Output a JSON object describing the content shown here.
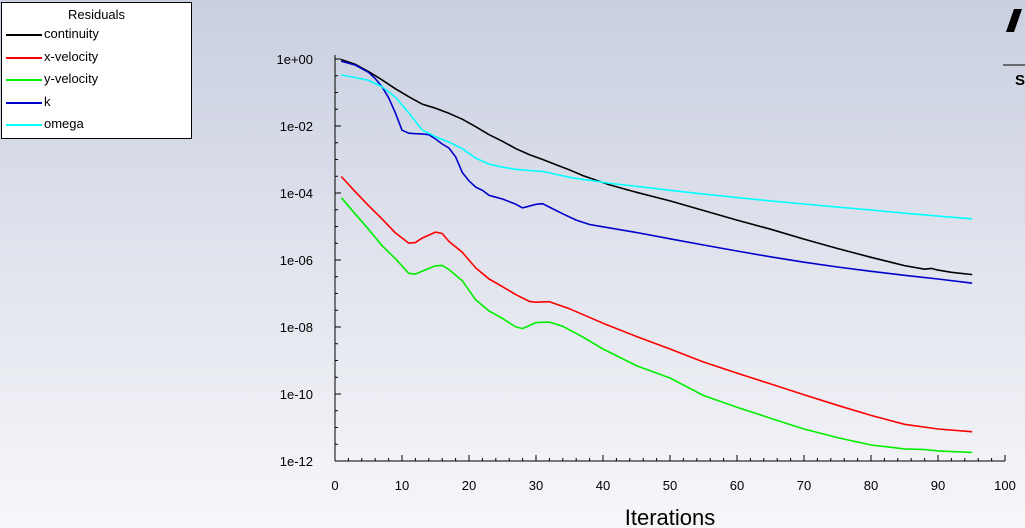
{
  "chart_data": {
    "type": "line",
    "legend_title": "Residuals",
    "legend_position": "top-left",
    "xlabel": "Iterations",
    "ylabel": "",
    "xlim": [
      0,
      100
    ],
    "ylim": [
      1e-12,
      1
    ],
    "y_scale": "log",
    "x_ticks": [
      0,
      10,
      20,
      30,
      40,
      50,
      60,
      70,
      80,
      90,
      100
    ],
    "x_tick_labels": [
      "0",
      "10",
      "20",
      "30",
      "40",
      "50",
      "60",
      "70",
      "80",
      "90",
      "100"
    ],
    "y_ticks": [
      1e-12,
      1e-10,
      1e-08,
      1e-06,
      0.0001,
      0.01,
      1
    ],
    "y_tick_labels": [
      "1e-12",
      "1e-10",
      "1e-08",
      "1e-06",
      "1e-04",
      "1e-02",
      "1e+00"
    ],
    "grid": false,
    "series": [
      {
        "name": "continuity",
        "color": "#000000",
        "x": [
          1,
          3,
          5,
          7,
          9,
          11,
          13,
          15,
          17,
          19,
          21,
          23,
          25,
          27,
          29,
          31,
          33,
          35,
          37,
          39,
          41,
          45,
          50,
          55,
          60,
          65,
          70,
          75,
          80,
          85,
          88,
          89,
          90,
          92,
          95
        ],
        "y": [
          0.95,
          0.7,
          0.42,
          0.24,
          0.13,
          0.075,
          0.045,
          0.034,
          0.024,
          0.016,
          0.0095,
          0.0055,
          0.0035,
          0.0021,
          0.0014,
          0.001,
          0.0007,
          0.00049,
          0.00033,
          0.00024,
          0.000175,
          0.000105,
          5.8e-05,
          3e-05,
          1.55e-05,
          8.3e-06,
          4.2e-06,
          2.2e-06,
          1.2e-06,
          6.8e-07,
          5.3e-07,
          5.6e-07,
          5e-07,
          4.3e-07,
          3.7e-07
        ]
      },
      {
        "name": "x-velocity",
        "color": "#ff0000",
        "x": [
          1,
          3,
          5,
          7,
          9,
          11,
          12,
          13,
          15,
          16,
          17,
          19,
          21,
          23,
          25,
          27,
          29,
          30,
          32,
          35,
          40,
          45,
          50,
          55,
          60,
          65,
          70,
          75,
          80,
          85,
          90,
          95
        ],
        "y": [
          0.0003,
          0.00011,
          4.2e-05,
          1.7e-05,
          6.5e-06,
          3.2e-06,
          3.3e-06,
          4.5e-06,
          6.8e-06,
          6.2e-06,
          3.6e-06,
          1.7e-06,
          5.8e-07,
          2.7e-07,
          1.6e-07,
          9.2e-08,
          5.8e-08,
          5.5e-08,
          5.7e-08,
          3.5e-08,
          1.3e-08,
          5.2e-09,
          2.2e-09,
          9e-10,
          4.2e-10,
          2e-10,
          9.5e-11,
          4.6e-11,
          2.3e-11,
          1.25e-11,
          9e-12,
          7.5e-12
        ]
      },
      {
        "name": "y-velocity",
        "color": "#00ee00",
        "x": [
          1,
          3,
          5,
          7,
          9,
          11,
          12,
          13,
          15,
          16,
          17,
          19,
          21,
          23,
          25,
          27,
          28,
          30,
          32,
          34,
          37,
          40,
          45,
          50,
          55,
          60,
          65,
          70,
          75,
          80,
          85,
          88,
          90,
          95
        ],
        "y": [
          7e-05,
          2.4e-05,
          8.3e-06,
          2.7e-06,
          1.1e-06,
          4e-07,
          3.8e-07,
          4.6e-07,
          6.7e-07,
          6.9e-07,
          5.2e-07,
          2.4e-07,
          6.5e-08,
          3e-08,
          1.8e-08,
          1e-08,
          9e-09,
          1.35e-08,
          1.4e-08,
          1.05e-08,
          5e-09,
          2.2e-09,
          7e-10,
          3e-10,
          9e-11,
          4e-11,
          1.9e-11,
          9e-12,
          5e-12,
          3e-12,
          2.3e-12,
          2.2e-12,
          2e-12,
          1.8e-12
        ]
      },
      {
        "name": "k",
        "color": "#0000cc",
        "x": [
          1,
          3,
          5,
          6,
          7,
          8,
          9,
          10,
          11,
          12,
          13,
          14,
          15,
          16,
          17,
          18,
          19,
          20,
          21,
          22,
          23,
          24,
          25,
          27,
          28,
          30,
          31,
          32,
          34,
          36,
          38,
          40,
          45,
          50,
          55,
          60,
          65,
          70,
          75,
          80,
          85,
          90,
          95
        ],
        "y": [
          0.85,
          0.66,
          0.4,
          0.26,
          0.15,
          0.07,
          0.025,
          0.0075,
          0.0061,
          0.0059,
          0.0058,
          0.0055,
          0.0041,
          0.0029,
          0.0022,
          0.0012,
          0.00041,
          0.00023,
          0.00015,
          0.00012,
          8.5e-05,
          7.5e-05,
          6.6e-05,
          4.6e-05,
          3.6e-05,
          4.6e-05,
          4.8e-05,
          3.8e-05,
          2.4e-05,
          1.55e-05,
          1.15e-05,
          9.8e-06,
          6.6e-06,
          4.3e-06,
          2.8e-06,
          1.85e-06,
          1.25e-06,
          8.6e-07,
          6.2e-07,
          4.6e-07,
          3.5e-07,
          2.7e-07,
          2.05e-07
        ]
      },
      {
        "name": "omega",
        "color": "#00ffff",
        "x": [
          1,
          3,
          5,
          7,
          9,
          11,
          13,
          15,
          17,
          19,
          21,
          23,
          25,
          27,
          29,
          31,
          33,
          35,
          37,
          39,
          41,
          45,
          50,
          55,
          60,
          65,
          70,
          75,
          80,
          85,
          90,
          95
        ],
        "y": [
          0.33,
          0.28,
          0.23,
          0.15,
          0.073,
          0.025,
          0.0077,
          0.0048,
          0.0033,
          0.0021,
          0.0011,
          0.00073,
          0.00059,
          0.00051,
          0.00047,
          0.00044,
          0.00036,
          0.000295,
          0.000255,
          0.000225,
          0.000195,
          0.000158,
          0.00012,
          9.3e-05,
          7.3e-05,
          5.8e-05,
          4.7e-05,
          3.8e-05,
          3.1e-05,
          2.5e-05,
          2.05e-05,
          1.7e-05
        ]
      }
    ]
  },
  "logo": {
    "text": "S"
  }
}
